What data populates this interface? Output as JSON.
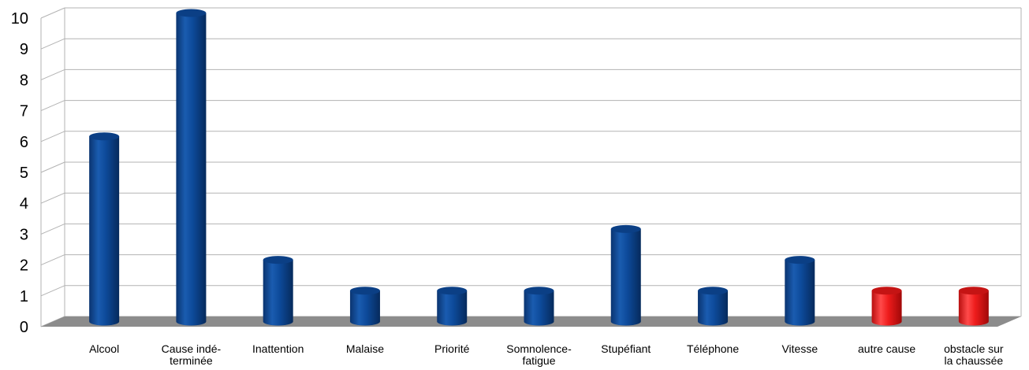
{
  "chart_data": {
    "type": "bar",
    "style": "3d-cylinder",
    "categories": [
      [
        "Alcool"
      ],
      [
        "Cause indé-",
        "terminée"
      ],
      [
        "Inattention"
      ],
      [
        "Malaise"
      ],
      [
        "Priorité"
      ],
      [
        "Somnolence-",
        "fatigue"
      ],
      [
        "Stupéfiant"
      ],
      [
        "Téléphone"
      ],
      [
        "Vitesse"
      ],
      [
        "autre cause"
      ],
      [
        "obstacle sur",
        "la chaussée"
      ]
    ],
    "values": [
      6,
      10,
      2,
      1,
      1,
      1,
      3,
      1,
      2,
      1,
      1
    ],
    "colors": [
      "#0d4a9a",
      "#0d4a9a",
      "#0d4a9a",
      "#0d4a9a",
      "#0d4a9a",
      "#0d4a9a",
      "#0d4a9a",
      "#0d4a9a",
      "#0d4a9a",
      "#ee1c1c",
      "#ee1c1c"
    ],
    "ylim": [
      0,
      10
    ],
    "yticks": [
      0,
      1,
      2,
      3,
      4,
      5,
      6,
      7,
      8,
      9,
      10
    ],
    "grid": true,
    "legend": "none",
    "title": "",
    "xlabel": "",
    "ylabel": ""
  }
}
